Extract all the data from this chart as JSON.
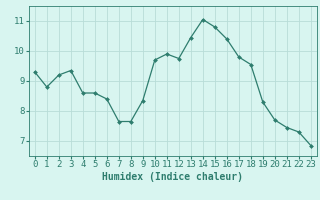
{
  "x": [
    0,
    1,
    2,
    3,
    4,
    5,
    6,
    7,
    8,
    9,
    10,
    11,
    12,
    13,
    14,
    15,
    16,
    17,
    18,
    19,
    20,
    21,
    22,
    23
  ],
  "y": [
    9.3,
    8.8,
    9.2,
    9.35,
    8.6,
    8.6,
    8.4,
    7.65,
    7.65,
    8.35,
    9.7,
    9.9,
    9.75,
    10.45,
    11.05,
    10.8,
    10.4,
    9.8,
    9.55,
    8.3,
    7.7,
    7.45,
    7.3,
    6.85
  ],
  "line_color": "#2e7d6e",
  "marker": "D",
  "marker_size": 2,
  "linewidth": 0.9,
  "bg_color": "#d8f5f0",
  "grid_color": "#b8ddd8",
  "xlabel": "Humidex (Indice chaleur)",
  "xlabel_fontsize": 7,
  "tick_fontsize": 6.5,
  "xlim": [
    -0.5,
    23.5
  ],
  "ylim": [
    6.5,
    11.5
  ],
  "yticks": [
    7,
    8,
    9,
    10,
    11
  ],
  "xticks": [
    0,
    1,
    2,
    3,
    4,
    5,
    6,
    7,
    8,
    9,
    10,
    11,
    12,
    13,
    14,
    15,
    16,
    17,
    18,
    19,
    20,
    21,
    22,
    23
  ]
}
